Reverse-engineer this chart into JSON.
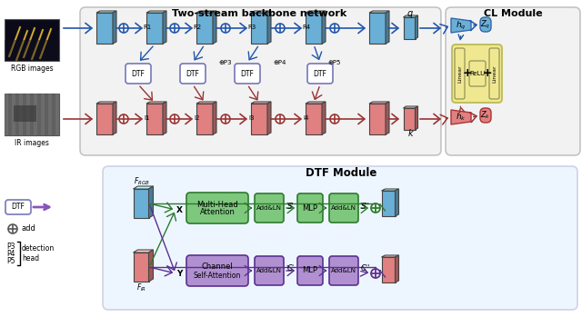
{
  "title_backbone": "Two-stream backbone network",
  "title_cl": "CL Module",
  "title_dtf": "DTF Module",
  "blue": "#6aafd6",
  "blue_dark": "#2255aa",
  "red": "#e08080",
  "red_dark": "#993333",
  "green_box": "#7ec87e",
  "green_dark": "#2d7a2d",
  "purple_box": "#b090d0",
  "purple_dark": "#5a3090",
  "yellow_box": "#f0e890",
  "yellow_dark": "#a09020",
  "bg_backbone": "#e8e8e8",
  "bg_dtf": "#ddeeff",
  "bg_cl": "#e8e8e8",
  "dtf_box": "#ffffff",
  "dtf_edge": "#7777bb"
}
